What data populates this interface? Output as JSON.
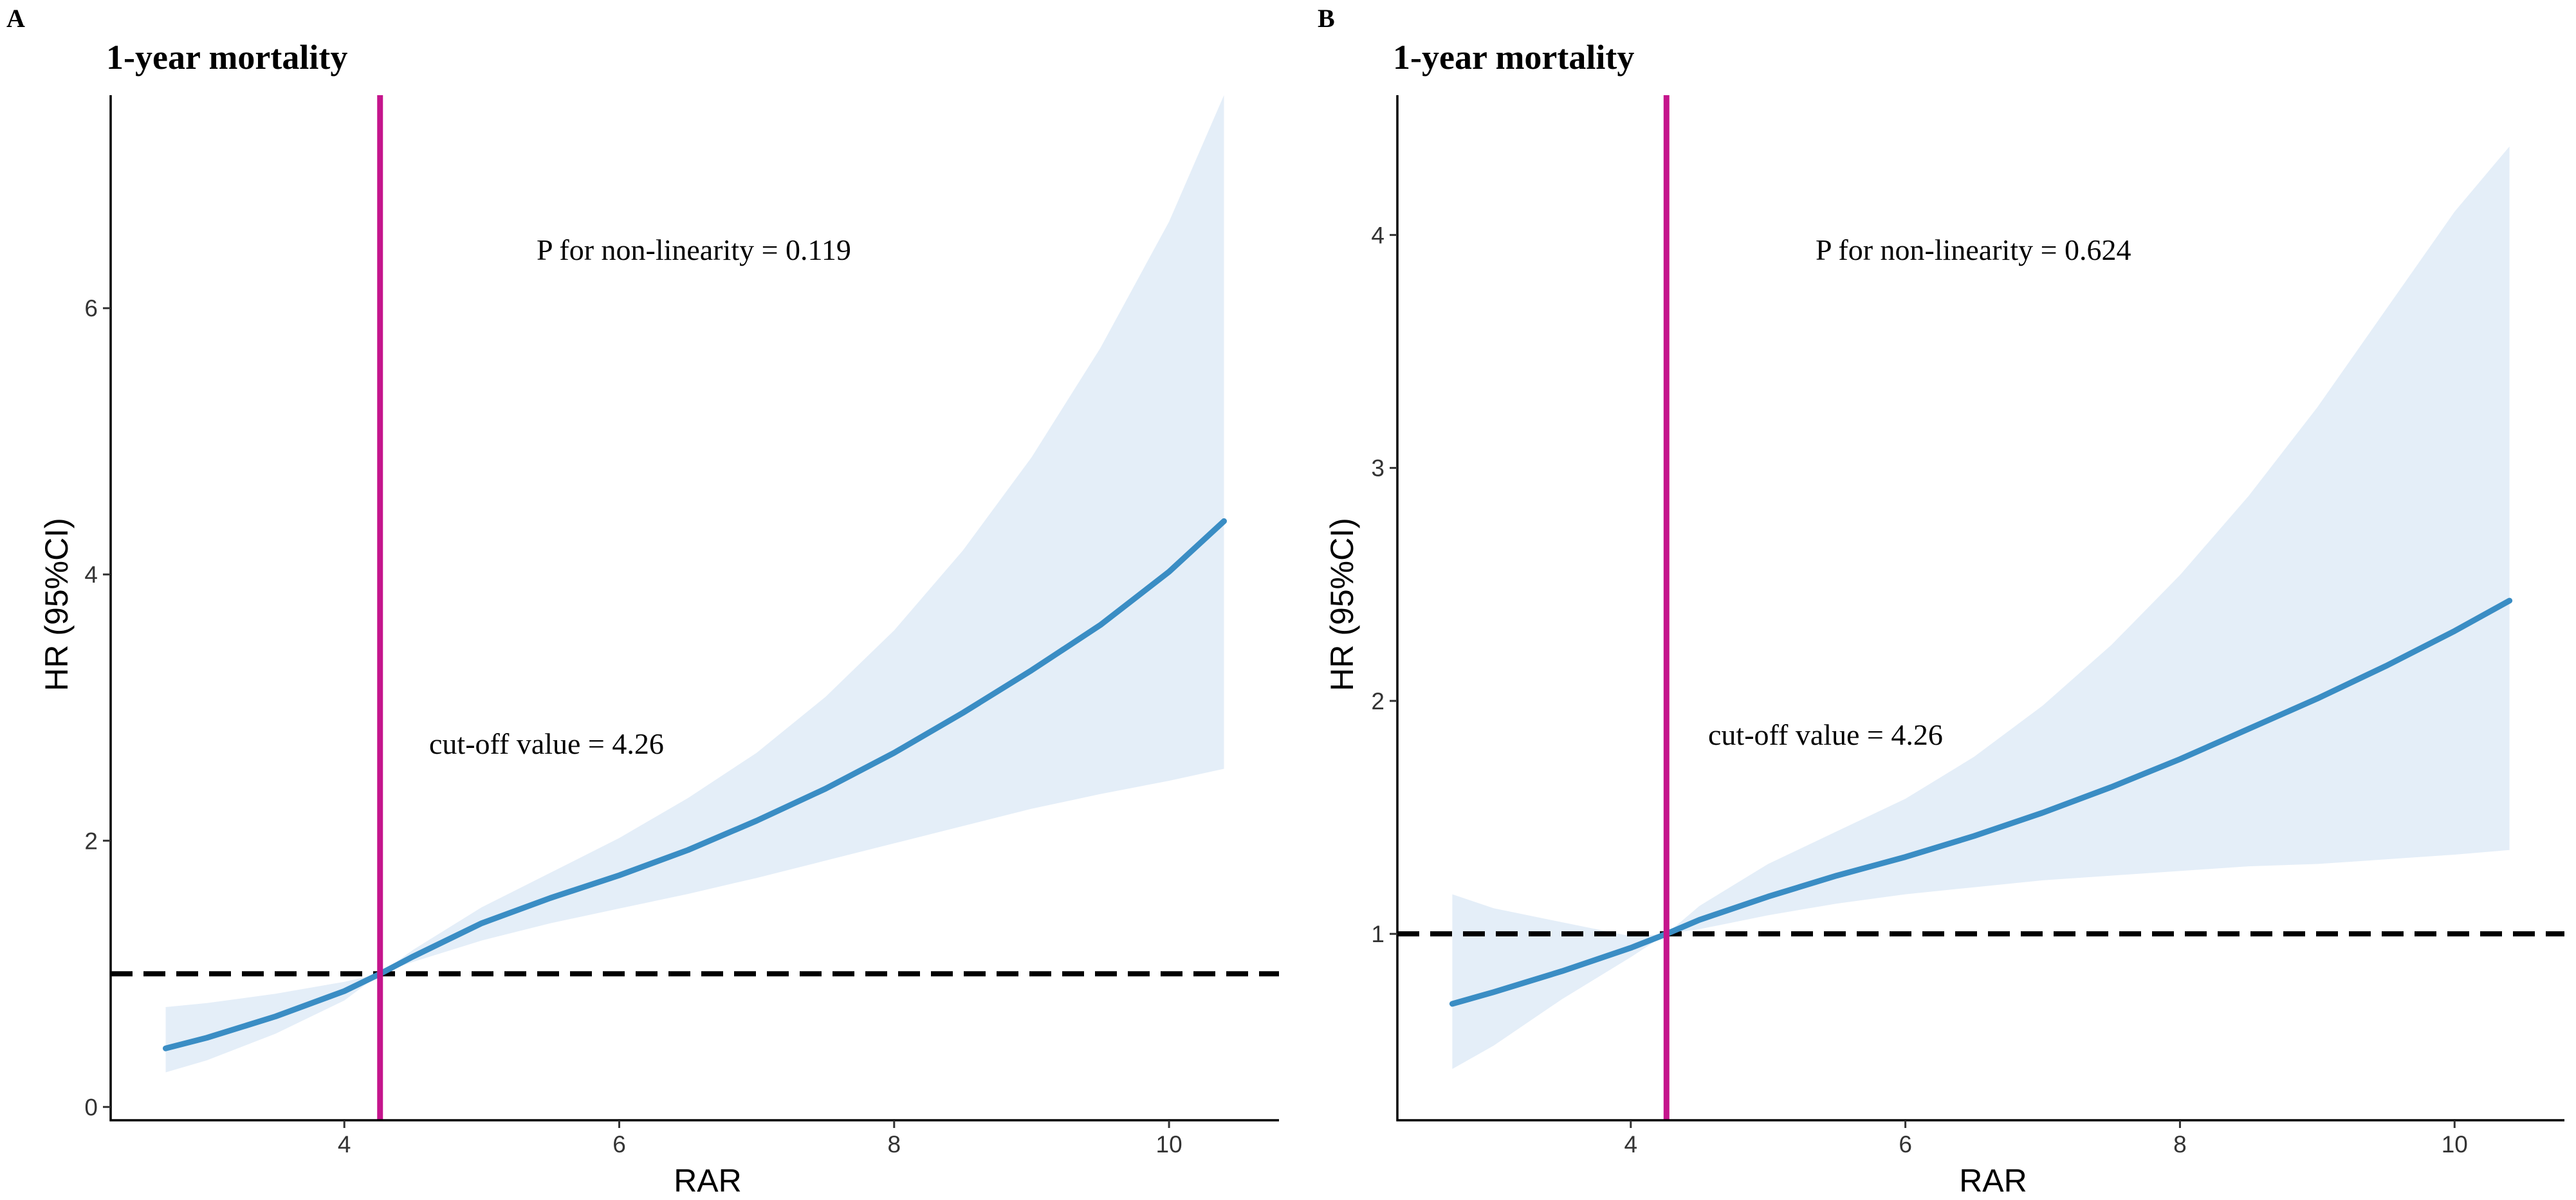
{
  "chart_data": [
    {
      "type": "line",
      "panel": "A",
      "title": "1-year mortality",
      "xlabel": "RAR",
      "ylabel": "HR (95%CI)",
      "xlim": [
        2.3,
        10.8
      ],
      "ylim": [
        -0.1,
        7.6
      ],
      "xticks": [
        4,
        6,
        8,
        10
      ],
      "yticks": [
        0,
        2,
        4,
        6
      ],
      "reference_hr": 1,
      "cutoff_x": 4.26,
      "cutoff_label": "cut-off value = 4.26",
      "nonlinearity_label": "P for non-linearity = 0.119",
      "grid": false,
      "line_color": "#3a8dc4",
      "band_color": "#e4eef8",
      "cutoff_color": "#c5158c",
      "series": [
        {
          "name": "HR",
          "x": [
            2.7,
            3.0,
            3.5,
            4.0,
            4.26,
            4.5,
            5.0,
            5.5,
            6.0,
            6.5,
            7.0,
            7.5,
            8.0,
            8.5,
            9.0,
            9.5,
            10.0,
            10.4
          ],
          "hr": [
            0.44,
            0.52,
            0.68,
            0.87,
            1.0,
            1.13,
            1.38,
            1.57,
            1.74,
            1.93,
            2.15,
            2.39,
            2.66,
            2.96,
            3.28,
            3.62,
            4.02,
            4.4
          ],
          "lower": [
            0.26,
            0.35,
            0.55,
            0.8,
            1.0,
            1.09,
            1.25,
            1.38,
            1.49,
            1.6,
            1.72,
            1.85,
            1.98,
            2.11,
            2.24,
            2.35,
            2.45,
            2.54
          ],
          "upper": [
            0.75,
            0.78,
            0.85,
            0.94,
            1.0,
            1.18,
            1.5,
            1.76,
            2.02,
            2.32,
            2.66,
            3.08,
            3.58,
            4.18,
            4.88,
            5.7,
            6.65,
            7.6
          ]
        }
      ]
    },
    {
      "type": "line",
      "panel": "B",
      "title": "1-year mortality",
      "xlabel": "RAR",
      "ylabel": "HR (95%CI)",
      "xlim": [
        2.3,
        10.8
      ],
      "ylim": [
        0.2,
        4.6
      ],
      "xticks": [
        4,
        6,
        8,
        10
      ],
      "yticks": [
        1,
        2,
        3,
        4
      ],
      "reference_hr": 1,
      "cutoff_x": 4.26,
      "cutoff_label": "cut-off value = 4.26",
      "nonlinearity_label": "P for non-linearity = 0.624",
      "grid": false,
      "line_color": "#3a8dc4",
      "band_color": "#e4eef8",
      "cutoff_color": "#c5158c",
      "series": [
        {
          "name": "HR",
          "x": [
            2.7,
            3.0,
            3.5,
            4.0,
            4.26,
            4.5,
            5.0,
            5.5,
            6.0,
            6.5,
            7.0,
            7.5,
            8.0,
            8.5,
            9.0,
            9.5,
            10.0,
            10.4
          ],
          "hr": [
            0.7,
            0.75,
            0.84,
            0.94,
            1.0,
            1.06,
            1.16,
            1.25,
            1.33,
            1.42,
            1.52,
            1.63,
            1.75,
            1.88,
            2.01,
            2.15,
            2.3,
            2.43
          ],
          "lower": [
            0.42,
            0.52,
            0.72,
            0.9,
            1.0,
            1.02,
            1.08,
            1.13,
            1.17,
            1.2,
            1.23,
            1.25,
            1.27,
            1.29,
            1.3,
            1.32,
            1.34,
            1.36
          ],
          "upper": [
            1.17,
            1.11,
            1.05,
            0.99,
            1.0,
            1.12,
            1.3,
            1.44,
            1.58,
            1.76,
            1.98,
            2.24,
            2.54,
            2.88,
            3.26,
            3.68,
            4.1,
            4.38
          ]
        }
      ]
    }
  ]
}
